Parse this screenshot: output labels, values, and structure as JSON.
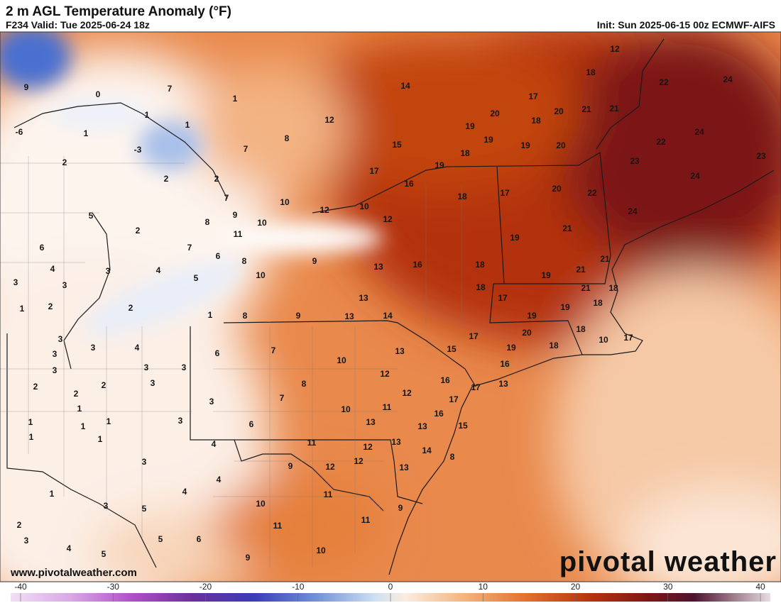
{
  "header": {
    "title": "2 m AGL Temperature Anomaly (°F)",
    "valid": "F234 Valid: Tue 2025-06-24 18z",
    "init": "Init: Sun 2025-06-15 00z ECMWF-AIFS"
  },
  "map": {
    "labels": [
      12,
      18,
      14,
      7,
      9,
      0,
      1,
      17,
      24,
      22,
      1,
      1,
      12,
      20,
      18,
      20,
      21,
      21,
      19,
      19,
      19,
      20,
      -6,
      1,
      8,
      15,
      18,
      -3,
      7,
      24,
      22,
      23,
      23,
      2,
      19,
      17,
      2,
      2,
      16,
      24,
      20,
      18,
      17,
      22,
      7,
      10,
      5,
      12,
      10,
      9,
      8,
      12,
      10,
      24,
      11,
      21,
      2,
      19,
      6,
      7,
      6,
      8,
      9,
      16,
      13,
      18,
      21,
      4,
      3,
      4,
      21,
      19,
      10,
      5,
      3,
      3,
      18,
      21,
      18,
      13,
      17,
      18,
      1,
      2,
      2,
      19,
      19,
      1,
      8,
      9,
      13,
      14,
      20,
      18,
      17,
      3,
      4,
      19,
      18,
      10,
      17,
      15,
      3,
      6,
      7,
      13,
      3,
      10,
      16,
      12,
      3,
      3,
      3,
      16,
      13,
      17,
      2,
      2,
      3,
      8,
      2,
      12,
      17,
      1,
      7,
      3,
      10,
      11,
      16,
      1,
      1,
      1,
      6,
      13,
      13,
      15,
      1,
      1,
      3,
      4,
      11,
      12,
      13,
      14,
      12,
      8,
      13,
      9,
      12,
      3,
      1,
      4,
      4,
      11,
      5,
      3,
      9,
      10,
      11,
      2,
      11,
      3,
      5,
      6,
      4,
      5,
      10,
      9
    ]
  },
  "colorbar": {
    "ticks": [
      -40,
      -30,
      -20,
      -10,
      0,
      10,
      20,
      30,
      40
    ]
  },
  "footer": {
    "url": "www.pivotalweather.com",
    "brand": "pivotal weather"
  }
}
